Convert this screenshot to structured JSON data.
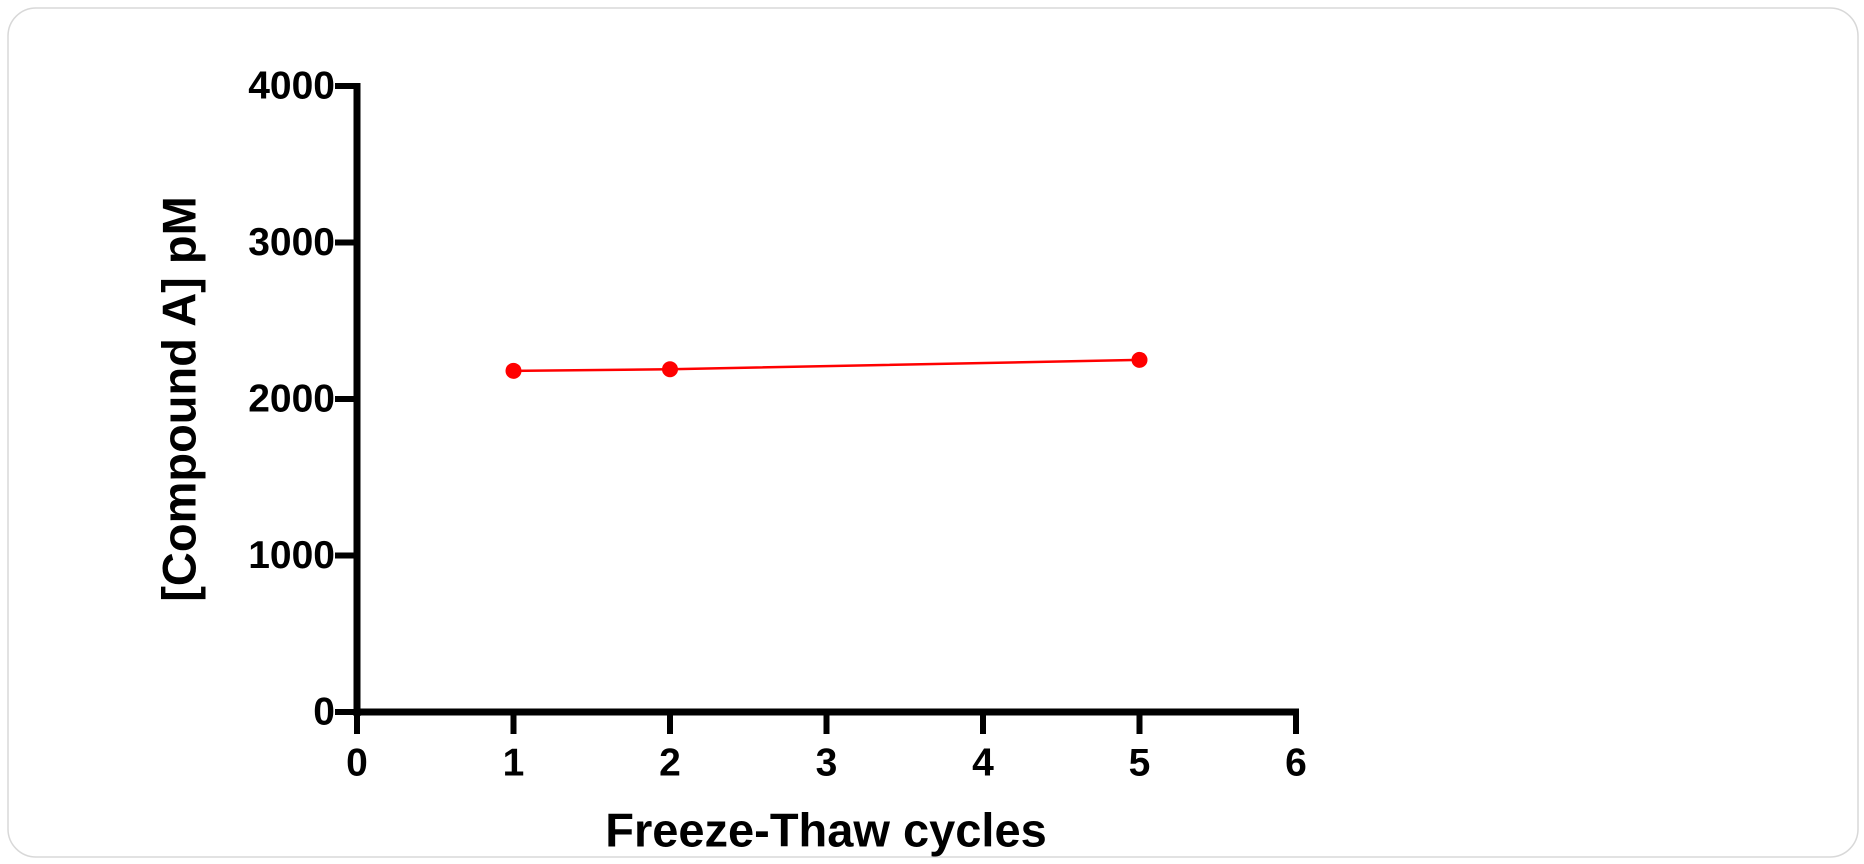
{
  "chart_data": {
    "type": "line",
    "x_label": "Freeze-Thaw cycles",
    "y_label": "[Compound A] pM",
    "x": [
      1,
      2,
      5
    ],
    "series": [
      {
        "name": "Compound A",
        "color": "#ff0000",
        "values": [
          2180,
          2190,
          2250
        ]
      }
    ],
    "xlim": [
      0,
      6
    ],
    "xticks": [
      0,
      1,
      2,
      3,
      4,
      5,
      6
    ],
    "ylim": [
      0,
      4000
    ],
    "yticks": [
      0,
      1000,
      2000,
      3000,
      4000
    ],
    "grid": false,
    "legend": false
  }
}
